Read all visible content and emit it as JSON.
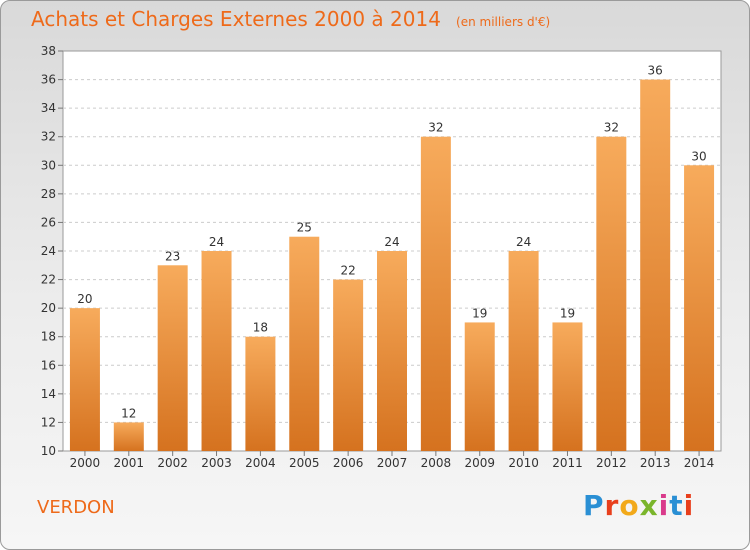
{
  "header": {
    "title": "Achats et Charges Externes 2000 à 2014",
    "subtitle": "(en milliers d'€)"
  },
  "footer": {
    "commune": "VERDON"
  },
  "logo": {
    "text": "Proxiti",
    "letter_colors": [
      "#2a8fd4",
      "#e83f1c",
      "#f2a91a",
      "#7ab52b",
      "#d93a8b",
      "#2a8fd4",
      "#e83f1c"
    ]
  },
  "colors": {
    "bar_light": "#f7ab5c",
    "bar_dark": "#d5721f",
    "title": "#ee6a1a"
  },
  "chart_data": {
    "type": "bar",
    "title": "Achats et Charges Externes 2000 à 2014",
    "subtitle": "(en milliers d'€)",
    "categories": [
      "2000",
      "2001",
      "2002",
      "2003",
      "2004",
      "2005",
      "2006",
      "2007",
      "2008",
      "2009",
      "2010",
      "2011",
      "2012",
      "2013",
      "2014"
    ],
    "values": [
      20,
      12,
      23,
      24,
      18,
      25,
      22,
      24,
      32,
      19,
      24,
      19,
      32,
      36,
      30
    ],
    "ylim": [
      10,
      38
    ],
    "yticks": [
      10,
      12,
      14,
      16,
      18,
      20,
      22,
      24,
      26,
      28,
      30,
      32,
      34,
      36,
      38
    ],
    "grid": true,
    "xlabel": "",
    "ylabel": ""
  }
}
